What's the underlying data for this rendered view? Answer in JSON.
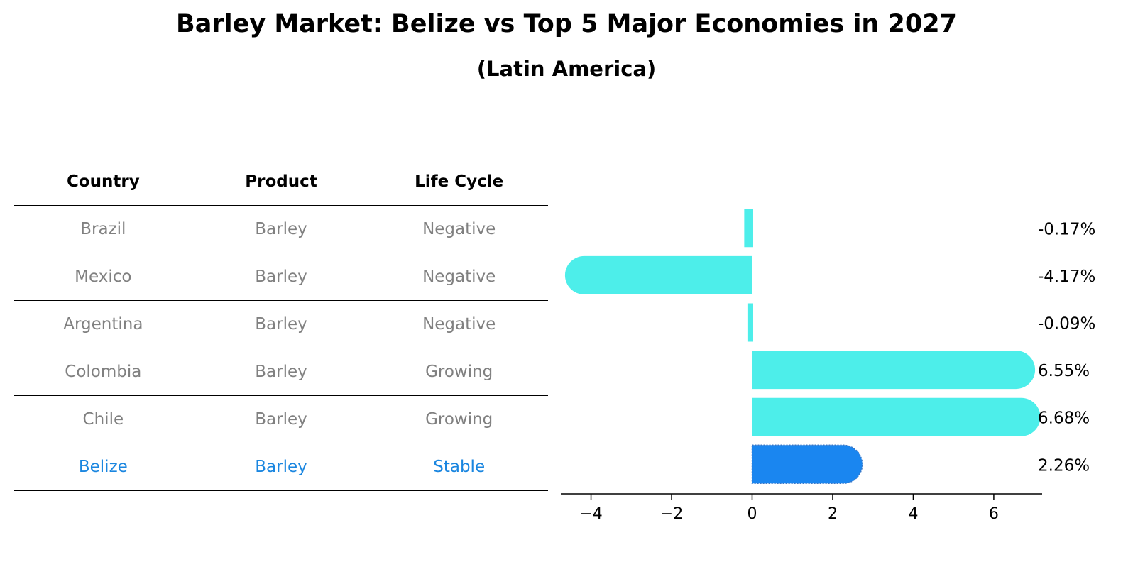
{
  "title": "Barley Market: Belize vs Top 5 Major Economies in 2027",
  "subtitle": "(Latin America)",
  "table": {
    "headers": [
      "Country",
      "Product",
      "Life Cycle"
    ],
    "rows": [
      {
        "country": "Brazil",
        "product": "Barley",
        "life_cycle": "Negative"
      },
      {
        "country": "Mexico",
        "product": "Barley",
        "life_cycle": "Negative"
      },
      {
        "country": "Argentina",
        "product": "Barley",
        "life_cycle": "Negative"
      },
      {
        "country": "Colombia",
        "product": "Barley",
        "life_cycle": "Growing"
      },
      {
        "country": "Chile",
        "product": "Barley",
        "life_cycle": "Growing"
      },
      {
        "country": "Belize",
        "product": "Barley",
        "life_cycle": "Stable"
      }
    ]
  },
  "colors": {
    "row_text": "#808080",
    "highlight_text": "#1a86e0",
    "bar": "#4deeea",
    "highlight_bar": "#1a86f0"
  },
  "chart_data": {
    "type": "bar",
    "orientation": "horizontal",
    "categories": [
      "Brazil",
      "Mexico",
      "Argentina",
      "Colombia",
      "Chile",
      "Belize"
    ],
    "values": [
      -0.17,
      -4.17,
      -0.09,
      6.55,
      6.68,
      2.26
    ],
    "labels": [
      "-0.17%",
      "-4.17%",
      "-0.09%",
      "6.55%",
      "6.68%",
      "2.26%"
    ],
    "highlight": "Belize",
    "xlim": [
      -4.75,
      7.2
    ],
    "xticks": [
      -4,
      -2,
      0,
      2,
      4,
      6
    ],
    "grid": false
  }
}
